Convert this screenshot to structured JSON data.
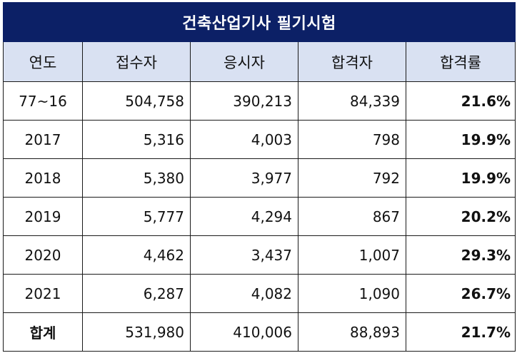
{
  "title": "건축산업기사 필기시험",
  "headers": [
    "연도",
    "접수자",
    "응시자",
    "합격자",
    "합격률"
  ],
  "rows": [
    {
      "year": "77~16",
      "applicants": "504,758",
      "examinees": "390,213",
      "passers": "84,339",
      "rate": "21.6%"
    },
    {
      "year": "2017",
      "applicants": "5,316",
      "examinees": "4,003",
      "passers": "798",
      "rate": "19.9%"
    },
    {
      "year": "2018",
      "applicants": "5,380",
      "examinees": "3,977",
      "passers": "792",
      "rate": "19.9%"
    },
    {
      "year": "2019",
      "applicants": "5,777",
      "examinees": "4,294",
      "passers": "867",
      "rate": "20.2%"
    },
    {
      "year": "2020",
      "applicants": "4,462",
      "examinees": "3,437",
      "passers": "1,007",
      "rate": "29.3%"
    },
    {
      "year": "2021",
      "applicants": "6,287",
      "examinees": "4,082",
      "passers": "1,090",
      "rate": "26.7%"
    }
  ],
  "total": {
    "label": "합계",
    "applicants": "531,980",
    "examinees": "410,006",
    "passers": "88,893",
    "rate": "21.7%"
  },
  "colors": {
    "title_bg": "#0c2066",
    "header_bg": "#d9e1f2",
    "border": "#1a1a1a"
  }
}
